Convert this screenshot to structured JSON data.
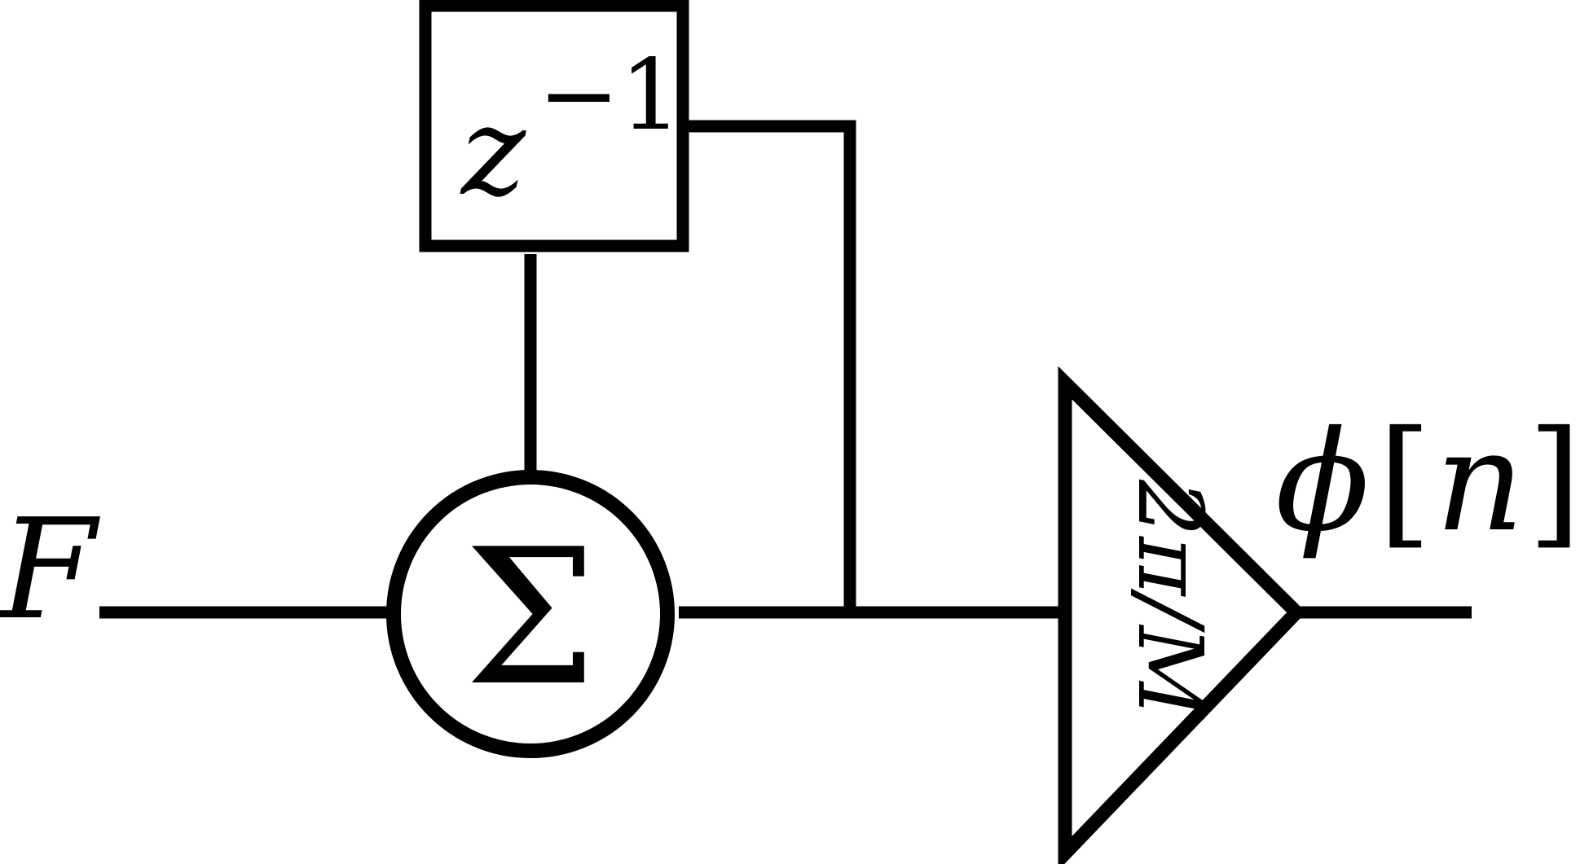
{
  "input_label": "F",
  "delay_block": {
    "symbol": "z",
    "exponent": "−1"
  },
  "summer_symbol": "Σ",
  "gain_block": {
    "label": "2π/M"
  },
  "output_label": {
    "phi": "ϕ",
    "bracket_open": "[",
    "index": "n",
    "bracket_close": "]"
  },
  "colors": {
    "stroke": "#000000",
    "background": "#ffffff"
  }
}
